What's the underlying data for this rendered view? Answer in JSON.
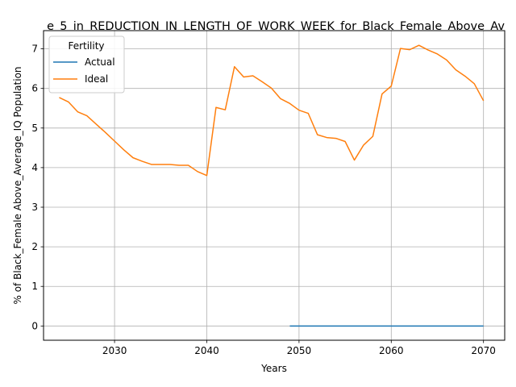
{
  "chart_data": {
    "type": "line",
    "title": "e_5_in_REDUCTION_IN_LENGTH_OF_WORK_WEEK_for_Black_Female_Above_Av",
    "xlabel": "Years",
    "ylabel": "% of Black_Female Above_Average_IQ Population",
    "xlim": [
      2022.3,
      2072.3
    ],
    "ylim": [
      -0.36,
      7.46
    ],
    "xticks": [
      2030,
      2040,
      2050,
      2060,
      2070
    ],
    "yticks": [
      0,
      1,
      2,
      3,
      4,
      5,
      6,
      7
    ],
    "grid": true,
    "legend": {
      "title": "Fertility",
      "placement": "top-left"
    },
    "series": [
      {
        "name": "Actual",
        "color": "#1f77b4",
        "x": [
          2049,
          2050,
          2051,
          2052,
          2053,
          2054,
          2055,
          2056,
          2057,
          2058,
          2059,
          2060,
          2061,
          2062,
          2063,
          2064,
          2065,
          2066,
          2067,
          2068,
          2069,
          2070
        ],
        "y": [
          0,
          0,
          0,
          0,
          0,
          0,
          0,
          0,
          0,
          0,
          0,
          0,
          0,
          0,
          0,
          0,
          0,
          0,
          0,
          0,
          0,
          0
        ]
      },
      {
        "name": "Ideal",
        "color": "#ff7f0e",
        "x": [
          2024,
          2025,
          2026,
          2027,
          2028,
          2029,
          2030,
          2031,
          2032,
          2033,
          2034,
          2035,
          2036,
          2037,
          2038,
          2039,
          2040,
          2041,
          2042,
          2043,
          2044,
          2045,
          2046,
          2047,
          2048,
          2049,
          2050,
          2051,
          2052,
          2053,
          2054,
          2055,
          2056,
          2057,
          2058,
          2059,
          2060,
          2061,
          2062,
          2063,
          2064,
          2065,
          2066,
          2067,
          2068,
          2069,
          2070
        ],
        "y": [
          5.77,
          5.66,
          5.41,
          5.31,
          5.1,
          4.89,
          4.67,
          4.45,
          4.25,
          4.16,
          4.08,
          4.08,
          4.08,
          4.06,
          4.06,
          3.9,
          3.8,
          5.52,
          5.46,
          6.55,
          6.29,
          6.32,
          6.17,
          6.01,
          5.74,
          5.62,
          5.45,
          5.37,
          4.83,
          4.76,
          4.74,
          4.66,
          4.19,
          4.57,
          4.79,
          5.86,
          6.06,
          7.01,
          6.98,
          7.09,
          6.97,
          6.87,
          6.72,
          6.47,
          6.31,
          6.12,
          5.69
        ]
      }
    ]
  }
}
